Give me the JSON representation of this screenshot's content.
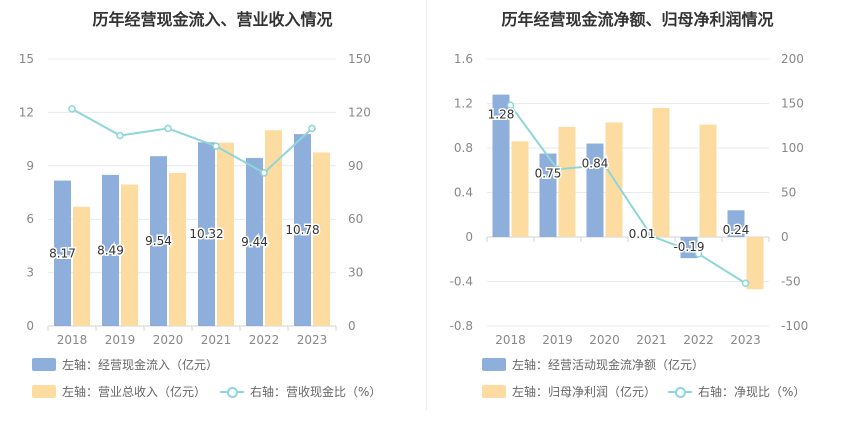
{
  "colors": {
    "blue": "#8eaedb",
    "orange": "#fddca2",
    "teal": "#8fd6d8",
    "axis_text": "#888888",
    "grid": "#e8eaef"
  },
  "left": {
    "title": "历年经营现金流入、营业收入情况",
    "legend": {
      "bar1": "左轴：经营现金流入（亿元）",
      "bar2": "左轴：营业总收入（亿元）",
      "line": "右轴：营收现金比（%）"
    }
  },
  "right": {
    "title": "历年经营现金流净额、归母净利润情况",
    "legend": {
      "bar1": "左轴：经营活动现金流净额（亿元）",
      "bar2": "左轴：归母净利润（亿元）",
      "line": "右轴：净现比（%）"
    }
  },
  "chart_data": [
    {
      "type": "bar",
      "title": "历年经营现金流入、营业收入情况",
      "categories": [
        "2018",
        "2019",
        "2020",
        "2021",
        "2022",
        "2023"
      ],
      "ylim_left": [
        0,
        15
      ],
      "yticks_left": [
        0,
        3,
        6,
        9,
        12,
        15
      ],
      "ylim_right": [
        0,
        150
      ],
      "yticks_right": [
        0,
        30,
        60,
        90,
        120,
        150
      ],
      "series": [
        {
          "name": "左轴：经营现金流入（亿元）",
          "type": "bar",
          "axis": "left",
          "values": [
            8.17,
            8.49,
            9.54,
            10.32,
            9.44,
            10.78
          ],
          "labels": [
            "8.17",
            "8.49",
            "9.54",
            "10.32",
            "9.44",
            "10.78"
          ]
        },
        {
          "name": "左轴：营业总收入（亿元）",
          "type": "bar",
          "axis": "left",
          "values": [
            6.7,
            7.95,
            8.6,
            10.3,
            11.0,
            9.75
          ]
        },
        {
          "name": "右轴：营收现金比（%）",
          "type": "line",
          "axis": "right",
          "values": [
            122,
            107,
            111,
            101,
            86,
            111
          ]
        }
      ],
      "grid": true,
      "legend_position": "bottom-left"
    },
    {
      "type": "bar",
      "title": "历年经营现金流净额、归母净利润情况",
      "categories": [
        "2018",
        "2019",
        "2020",
        "2021",
        "2022",
        "2023"
      ],
      "ylim_left": [
        -0.8,
        1.6
      ],
      "yticks_left": [
        -0.8,
        -0.4,
        0,
        0.4,
        0.8,
        1.2,
        1.6
      ],
      "ytick_labels_left": [
        "-0.8",
        "-0.4",
        "0",
        "0.4",
        "0.8",
        "1.2",
        "1.6"
      ],
      "ylim_right": [
        -100,
        200
      ],
      "yticks_right": [
        -100,
        -50,
        0,
        50,
        100,
        150,
        200
      ],
      "series": [
        {
          "name": "左轴：经营活动现金流净额（亿元）",
          "type": "bar",
          "axis": "left",
          "values": [
            1.28,
            0.75,
            0.84,
            0.01,
            -0.19,
            0.24
          ],
          "labels": [
            "1.28",
            "0.75",
            "0.84",
            "0.01",
            "-0.19",
            "0.24"
          ]
        },
        {
          "name": "左轴：归母净利润（亿元）",
          "type": "bar",
          "axis": "left",
          "values": [
            0.86,
            0.99,
            1.03,
            1.16,
            1.01,
            -0.47
          ]
        },
        {
          "name": "右轴：净现比（%）",
          "type": "line",
          "axis": "right",
          "values": [
            148,
            76,
            81,
            1,
            -19,
            -52
          ]
        }
      ],
      "grid": true,
      "legend_position": "bottom-left"
    }
  ]
}
